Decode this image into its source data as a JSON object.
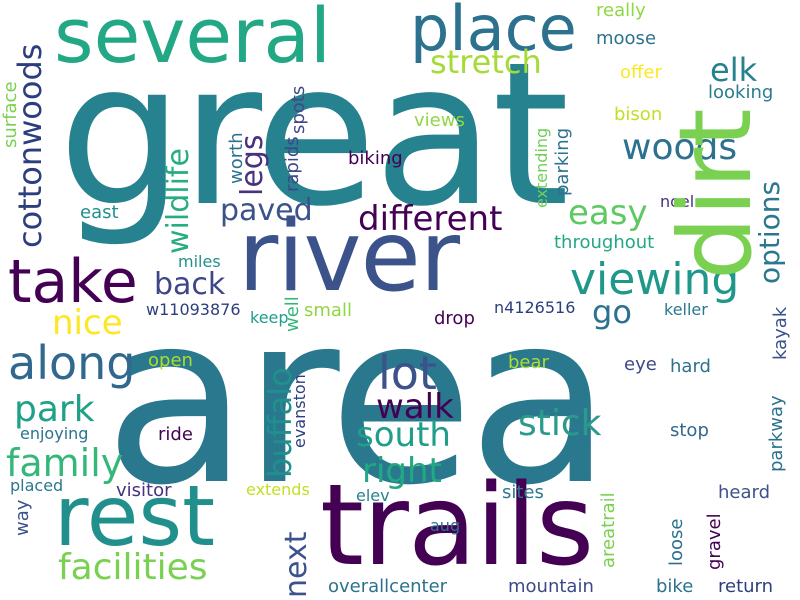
{
  "words": [
    {
      "text": "great",
      "color": "#26828e"
    },
    {
      "text": "area",
      "color": "#2a788e"
    },
    {
      "text": "river",
      "color": "#3b528b"
    },
    {
      "text": "trails",
      "color": "#440154"
    },
    {
      "text": "rest",
      "color": "#21908d"
    },
    {
      "text": "several",
      "color": "#22a884"
    },
    {
      "text": "place",
      "color": "#2c728e"
    },
    {
      "text": "dirt",
      "color": "#7ad151"
    },
    {
      "text": "take",
      "color": "#440154"
    },
    {
      "text": "viewing",
      "color": "#1f988b"
    },
    {
      "text": "lot",
      "color": "#3b528b"
    },
    {
      "text": "along",
      "color": "#31688e"
    },
    {
      "text": "family",
      "color": "#35b779"
    },
    {
      "text": "facilities",
      "color": "#7ad151"
    },
    {
      "text": "different",
      "color": "#440154"
    },
    {
      "text": "cottonwoods",
      "color": "#2c3e7e"
    },
    {
      "text": "wildlife",
      "color": "#27ad81"
    },
    {
      "text": "legs",
      "color": "#46327e"
    },
    {
      "text": "stretch",
      "color": "#a5db36"
    },
    {
      "text": "woods",
      "color": "#2c728e"
    },
    {
      "text": "elk",
      "color": "#26828e"
    },
    {
      "text": "easy",
      "color": "#5ec962"
    },
    {
      "text": "paved",
      "color": "#3b528b"
    },
    {
      "text": "back",
      "color": "#3f4788"
    },
    {
      "text": "go",
      "color": "#2c728e"
    },
    {
      "text": "options",
      "color": "#2a788e"
    },
    {
      "text": "nice",
      "color": "#fde725"
    },
    {
      "text": "park",
      "color": "#1fa187"
    },
    {
      "text": "walk",
      "color": "#440154"
    },
    {
      "text": "buffalo",
      "color": "#21908d"
    },
    {
      "text": "south",
      "color": "#1f9e89"
    },
    {
      "text": "stick",
      "color": "#2a9b8a"
    },
    {
      "text": "right",
      "color": "#22a884"
    },
    {
      "text": "next",
      "color": "#3b528b"
    },
    {
      "text": "really",
      "color": "#8fd744"
    },
    {
      "text": "moose",
      "color": "#2c728e"
    },
    {
      "text": "offer",
      "color": "#fde725"
    },
    {
      "text": "looking",
      "color": "#287d8e"
    },
    {
      "text": "bison",
      "color": "#c2df23"
    },
    {
      "text": "noel",
      "color": "#46327e"
    },
    {
      "text": "throughout",
      "color": "#22a884"
    },
    {
      "text": "views",
      "color": "#8fd744"
    },
    {
      "text": "biking",
      "color": "#440154"
    },
    {
      "text": "extending",
      "color": "#6ece58"
    },
    {
      "text": "parking",
      "color": "#2c728e"
    },
    {
      "text": "spots",
      "color": "#3e4989"
    },
    {
      "text": "rapids",
      "color": "#3f4788"
    },
    {
      "text": "worth",
      "color": "#2c728e"
    },
    {
      "text": "surface",
      "color": "#7ad151"
    },
    {
      "text": "east",
      "color": "#21908d"
    },
    {
      "text": "miles",
      "color": "#21908d"
    },
    {
      "text": "w11093876",
      "color": "#2c3e7e"
    },
    {
      "text": "keep",
      "color": "#1f9e89"
    },
    {
      "text": "small",
      "color": "#8fd744"
    },
    {
      "text": "well",
      "color": "#35b779"
    },
    {
      "text": "drop",
      "color": "#440154"
    },
    {
      "text": "n4126516",
      "color": "#2c3e7e"
    },
    {
      "text": "keller",
      "color": "#2a788e"
    },
    {
      "text": "kayak",
      "color": "#3b528b"
    },
    {
      "text": "open",
      "color": "#addc30"
    },
    {
      "text": "bear",
      "color": "#addc30"
    },
    {
      "text": "eye",
      "color": "#3e4989"
    },
    {
      "text": "hard",
      "color": "#2c728e"
    },
    {
      "text": "evanston",
      "color": "#2c3e7e"
    },
    {
      "text": "enjoying",
      "color": "#2c728e"
    },
    {
      "text": "ride",
      "color": "#440154"
    },
    {
      "text": "stop",
      "color": "#31688e"
    },
    {
      "text": "parkway",
      "color": "#2c728e"
    },
    {
      "text": "placed",
      "color": "#2a788e"
    },
    {
      "text": "visitor",
      "color": "#46327e"
    },
    {
      "text": "extends",
      "color": "#c2df23"
    },
    {
      "text": "elev",
      "color": "#26828e"
    },
    {
      "text": "sites",
      "color": "#2a788e"
    },
    {
      "text": "heard",
      "color": "#3b528b"
    },
    {
      "text": "way",
      "color": "#3b528b"
    },
    {
      "text": "aug",
      "color": "#2c728e"
    },
    {
      "text": "areatrail",
      "color": "#7ad151"
    },
    {
      "text": "loose",
      "color": "#2c728e"
    },
    {
      "text": "gravel",
      "color": "#440154"
    },
    {
      "text": "overallcenter",
      "color": "#2c728e"
    },
    {
      "text": "mountain",
      "color": "#3e4989"
    },
    {
      "text": "bike",
      "color": "#2c728e"
    },
    {
      "text": "return",
      "color": "#2c3e7e"
    }
  ]
}
